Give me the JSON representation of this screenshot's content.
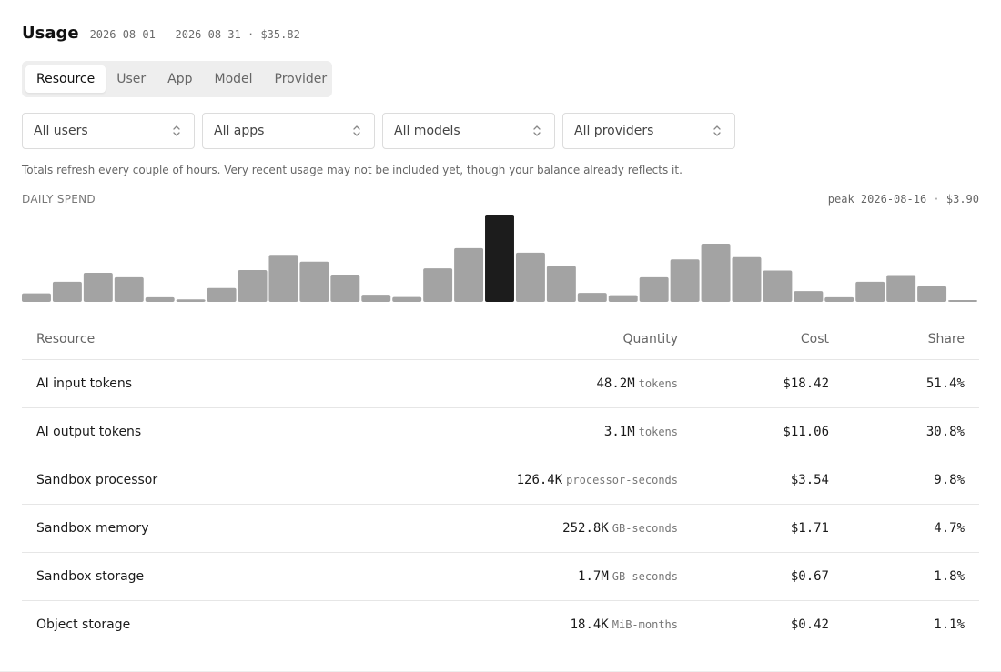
{
  "header": {
    "title": "Usage",
    "date_range": "2026-08-01 — 2026-08-31",
    "separator": "·",
    "total": "$35.82"
  },
  "tabs": [
    {
      "label": "Resource",
      "active": true
    },
    {
      "label": "User",
      "active": false
    },
    {
      "label": "App",
      "active": false
    },
    {
      "label": "Model",
      "active": false
    },
    {
      "label": "Provider",
      "active": false
    }
  ],
  "filters": [
    {
      "value": "All users",
      "icon": "chevron-up-down-icon"
    },
    {
      "value": "All apps",
      "icon": "chevron-up-down-icon"
    },
    {
      "value": "All models",
      "icon": "chevron-up-down-icon"
    },
    {
      "value": "All providers",
      "icon": "chevron-up-down-icon"
    }
  ],
  "note": "Totals refresh every couple of hours. Very recent usage may not be included yet, though your balance already reflects it.",
  "daily_spend": {
    "label": "DAILY SPEND",
    "peak_prefix": "peak",
    "peak_date": "2026-08-16",
    "peak_separator": "·",
    "peak_value": "$3.90"
  },
  "chart_data": {
    "type": "bar",
    "categories": [
      "2026-08-01",
      "2026-08-02",
      "2026-08-03",
      "2026-08-04",
      "2026-08-05",
      "2026-08-06",
      "2026-08-07",
      "2026-08-08",
      "2026-08-09",
      "2026-08-10",
      "2026-08-11",
      "2026-08-12",
      "2026-08-13",
      "2026-08-14",
      "2026-08-15",
      "2026-08-16",
      "2026-08-17",
      "2026-08-18",
      "2026-08-19",
      "2026-08-20",
      "2026-08-21",
      "2026-08-22",
      "2026-08-23",
      "2026-08-24",
      "2026-08-25",
      "2026-08-26",
      "2026-08-27",
      "2026-08-28",
      "2026-08-29",
      "2026-08-30",
      "2026-08-31"
    ],
    "values": [
      0.38,
      0.9,
      1.3,
      1.1,
      0.21,
      0.11,
      0.62,
      1.42,
      2.1,
      1.8,
      1.22,
      0.32,
      0.22,
      1.5,
      2.4,
      3.9,
      2.2,
      1.6,
      0.4,
      0.3,
      1.1,
      1.9,
      2.6,
      2.0,
      1.4,
      0.48,
      0.21,
      0.9,
      1.2,
      0.7,
      0.08
    ],
    "highlight_index": 15,
    "colors": {
      "bar": "#a3a3a3",
      "highlight": "#1c1c1c"
    },
    "ylim": [
      0,
      3.9
    ]
  },
  "table": {
    "columns": {
      "resource": "Resource",
      "quantity": "Quantity",
      "cost": "Cost",
      "share": "Share"
    },
    "rows": [
      {
        "resource": "AI input tokens",
        "quantity": "48.2M",
        "unit": "tokens",
        "cost": "$18.42",
        "share": "51.4%"
      },
      {
        "resource": "AI output tokens",
        "quantity": "3.1M",
        "unit": "tokens",
        "cost": "$11.06",
        "share": "30.8%"
      },
      {
        "resource": "Sandbox processor",
        "quantity": "126.4K",
        "unit": "processor-seconds",
        "cost": "$3.54",
        "share": "9.8%"
      },
      {
        "resource": "Sandbox memory",
        "quantity": "252.8K",
        "unit": "GB-seconds",
        "cost": "$1.71",
        "share": "4.7%"
      },
      {
        "resource": "Sandbox storage",
        "quantity": "1.7M",
        "unit": "GB-seconds",
        "cost": "$0.67",
        "share": "1.8%"
      },
      {
        "resource": "Object storage",
        "quantity": "18.4K",
        "unit": "MiB-months",
        "cost": "$0.42",
        "share": "1.1%"
      }
    ]
  }
}
